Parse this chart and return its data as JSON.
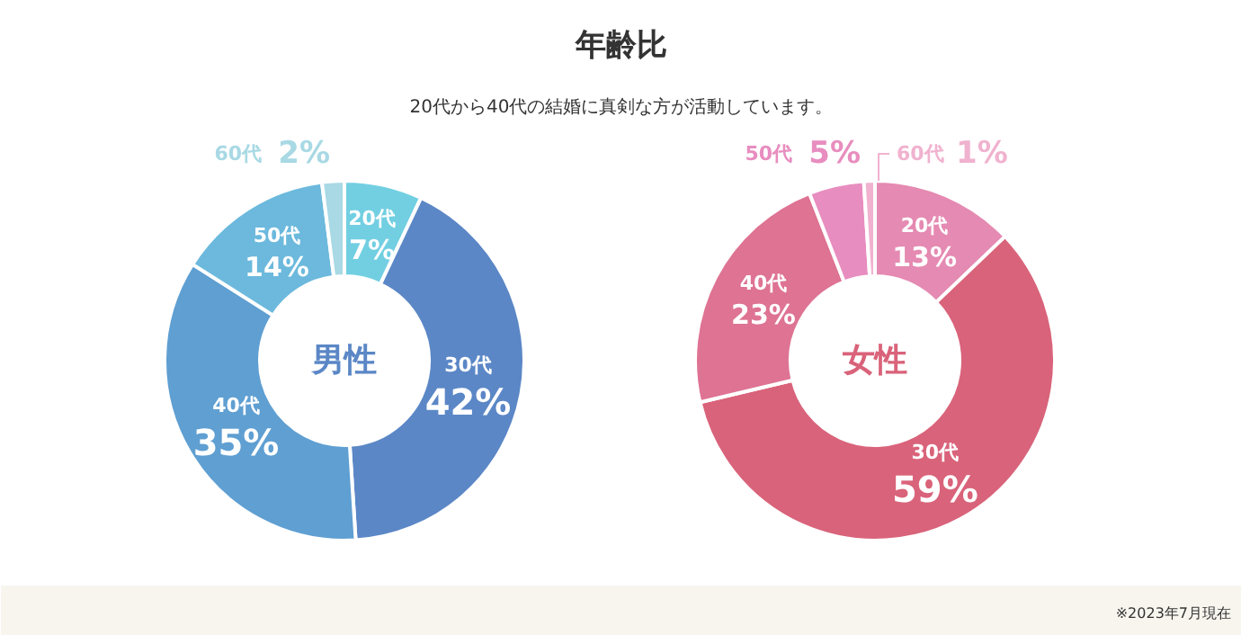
{
  "chart_data": [
    {
      "type": "other",
      "title": "年齢比",
      "subtitle": "20代から40代の結婚に真剣な方が活動しています。",
      "annotations": [
        "※2023年7月現在"
      ]
    },
    {
      "type": "donut",
      "title": "男性",
      "categories": [
        "20代",
        "30代",
        "40代",
        "50代",
        "60代"
      ],
      "values": [
        7,
        42,
        35,
        14,
        2
      ],
      "value_labels": [
        "7%",
        "42%",
        "35%",
        "14%",
        "2%"
      ],
      "colors": [
        "#72cfe2",
        "#5b87c6",
        "#5f9fd2",
        "#6cb9dd",
        "#a8d9e4"
      ]
    },
    {
      "type": "donut",
      "title": "女性",
      "categories": [
        "20代",
        "30代",
        "40代",
        "50代",
        "60代"
      ],
      "values": [
        13,
        59,
        23,
        5,
        1
      ],
      "value_labels": [
        "13%",
        "59%",
        "23%",
        "5%",
        "1%"
      ],
      "colors": [
        "#e58ab2",
        "#d9637a",
        "#de7393",
        "#e88dbf",
        "#f0b2cf"
      ]
    }
  ]
}
